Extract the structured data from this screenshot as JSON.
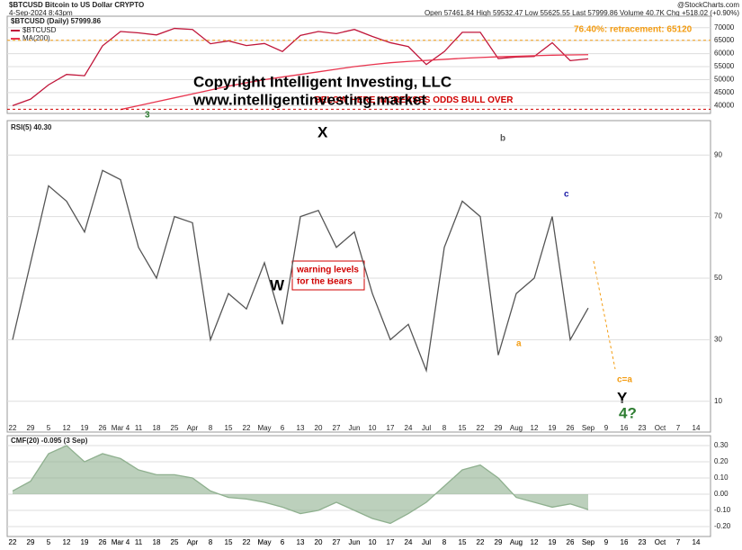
{
  "header": {
    "symbol": "$BTCUSD Bitcoin to US Dollar CRYPTO",
    "date": "4-Sep-2024 8:43pm",
    "quote": "Open 57461.84  High 59532.47  Low 55625.55  Last 57999.86  Volume 40.7K  Chg +518.02 (+0.90%)",
    "source": "@StockCharts.com"
  },
  "chart_data": [
    {
      "type": "line",
      "title": "$BTCUSD (Daily) 57999.86",
      "categories": [
        "22",
        "29",
        "5",
        "12",
        "19",
        "26",
        "Mar 4",
        "11",
        "18",
        "25",
        "Apr",
        "8",
        "15",
        "22",
        "May",
        "6",
        "13",
        "20",
        "27",
        "Jun",
        "10",
        "17",
        "24",
        "Jul",
        "8",
        "15",
        "22",
        "29",
        "Aug",
        "12",
        "19",
        "26",
        "Sep",
        "9",
        "16",
        "23",
        "Oct",
        "7",
        "14"
      ],
      "series": [
        {
          "name": "$BTCUSD",
          "color": "#c0163a",
          "values": [
            40000,
            42500,
            48000,
            52000,
            51500,
            63000,
            68500,
            68000,
            67200,
            69700,
            69300,
            63800,
            64900,
            63100,
            63900,
            60800,
            67000,
            68500,
            67700,
            69300,
            66600,
            64200,
            62700,
            55800,
            60800,
            68200,
            68200,
            58100,
            58700,
            58900,
            64200,
            57300,
            58000,
            null,
            null,
            null,
            null,
            null,
            null
          ]
        },
        {
          "name": "MA(200)",
          "color": "#e8344e",
          "values": [
            null,
            null,
            null,
            null,
            null,
            null,
            38500,
            40000,
            41500,
            43000,
            44500,
            46000,
            47500,
            48800,
            50000,
            51000,
            52000,
            53000,
            54000,
            55000,
            55800,
            56500,
            57000,
            57400,
            57800,
            58200,
            58500,
            58800,
            59000,
            59200,
            59400,
            59500,
            59600,
            null,
            null,
            null,
            null,
            null,
            null
          ]
        }
      ],
      "ylim": [
        37700,
        73700
      ],
      "yticks": [
        40000,
        45000,
        50000,
        55000,
        60000,
        65000,
        70000
      ],
      "reference_lines": [
        {
          "label": "76.40%: retracement: 65120",
          "value": 65120,
          "color": "#f39c12"
        },
        {
          "label": "BELOW HERE INCREASES ODDS BULL OVER",
          "value": 38600,
          "color": "#d00000"
        }
      ],
      "annotations": [
        "Copyright Intelligent Investing, LLC",
        "www.intelligentinvesting.market",
        "warning levels for the Bears",
        "W",
        "X",
        "Y",
        "4?",
        "c=a",
        "3",
        "b",
        "c",
        "a"
      ]
    },
    {
      "type": "line",
      "title": "RSI(5) 40.30",
      "color": "#555",
      "values": [
        30,
        55,
        80,
        75,
        65,
        85,
        82,
        60,
        50,
        70,
        68,
        30,
        45,
        40,
        55,
        35,
        70,
        72,
        60,
        65,
        45,
        30,
        35,
        20,
        60,
        75,
        70,
        25,
        45,
        50,
        70,
        30,
        40.3
      ],
      "ylim": [
        0,
        100
      ],
      "yticks": [
        10,
        30,
        50,
        70,
        90
      ]
    },
    {
      "type": "area",
      "title": "CMF(20) -0.095 (3 Sep)",
      "color": "#8fb08f",
      "values": [
        0.02,
        0.08,
        0.25,
        0.3,
        0.2,
        0.25,
        0.22,
        0.15,
        0.12,
        0.12,
        0.1,
        0.02,
        -0.02,
        -0.03,
        -0.05,
        -0.08,
        -0.12,
        -0.1,
        -0.05,
        -0.1,
        -0.15,
        -0.18,
        -0.12,
        -0.05,
        0.05,
        0.15,
        0.18,
        0.1,
        -0.02,
        -0.05,
        -0.08,
        -0.06,
        -0.095
      ],
      "ylim": [
        -0.25,
        0.35
      ],
      "yticks": [
        {
          "value": -0.2,
          "label": "-0.20"
        },
        {
          "value": -0.1,
          "label": "-0.10"
        },
        {
          "value": 0,
          "label": "0.00"
        },
        {
          "value": 0.1,
          "label": "0.10"
        },
        {
          "value": 0.2,
          "label": "0.20"
        },
        {
          "value": 0.3,
          "label": "0.30"
        }
      ]
    }
  ]
}
